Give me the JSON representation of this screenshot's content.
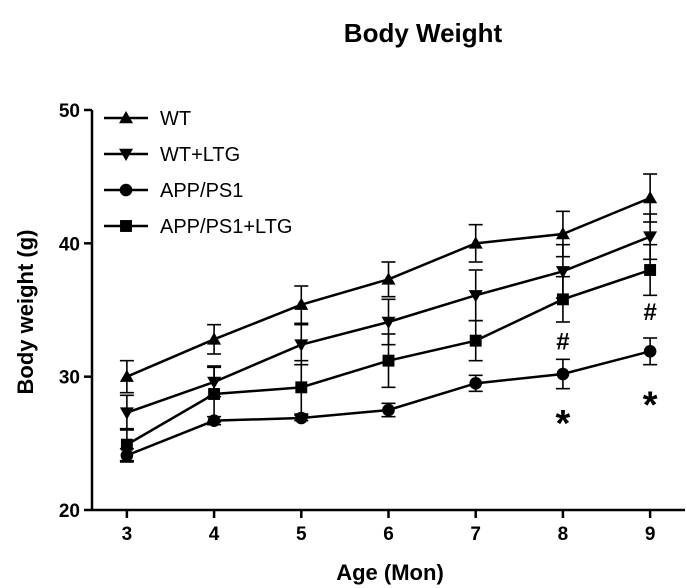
{
  "chart_data": {
    "type": "line",
    "title": "Body Weight",
    "xlabel": "Age (Mon)",
    "ylabel": "Body weight (g)",
    "x": [
      3,
      4,
      5,
      6,
      7,
      8,
      9
    ],
    "xlim": [
      2.6,
      9.4
    ],
    "ylim": [
      20,
      50
    ],
    "yticks": [
      20,
      30,
      40,
      50
    ],
    "legend_position": "top-left",
    "grid": false,
    "series": [
      {
        "name": "WT",
        "marker": "triangle-up",
        "values": [
          30.0,
          32.8,
          35.4,
          37.3,
          40.0,
          40.7,
          43.4
        ],
        "errors": [
          1.2,
          1.1,
          1.4,
          1.3,
          1.4,
          1.7,
          1.8
        ]
      },
      {
        "name": "WT+LTG",
        "marker": "triangle-down",
        "values": [
          27.3,
          29.6,
          32.4,
          34.1,
          36.1,
          37.9,
          40.5
        ],
        "errors": [
          1.3,
          1.1,
          1.5,
          1.7,
          1.9,
          2.0,
          1.7
        ]
      },
      {
        "name": "APP/PS1",
        "marker": "circle",
        "values": [
          24.1,
          26.7,
          26.9,
          27.5,
          29.5,
          30.2,
          31.9
        ],
        "errors": [
          0.5,
          0.3,
          0.2,
          0.5,
          0.6,
          1.1,
          1.0
        ]
      },
      {
        "name": "APP/PS1+LTG",
        "marker": "square",
        "values": [
          24.9,
          28.7,
          29.2,
          31.2,
          32.7,
          35.8,
          38.0
        ],
        "errors": [
          1.2,
          2.1,
          2.0,
          2.0,
          1.5,
          1.7,
          1.9
        ]
      }
    ],
    "annotations": [
      {
        "text": "#",
        "x": 8,
        "y": 32.8
      },
      {
        "text": "#",
        "x": 9,
        "y": 35.0
      },
      {
        "text": "*",
        "x": 8,
        "y": 27.2
      },
      {
        "text": "*",
        "x": 9,
        "y": 28.6
      }
    ]
  }
}
